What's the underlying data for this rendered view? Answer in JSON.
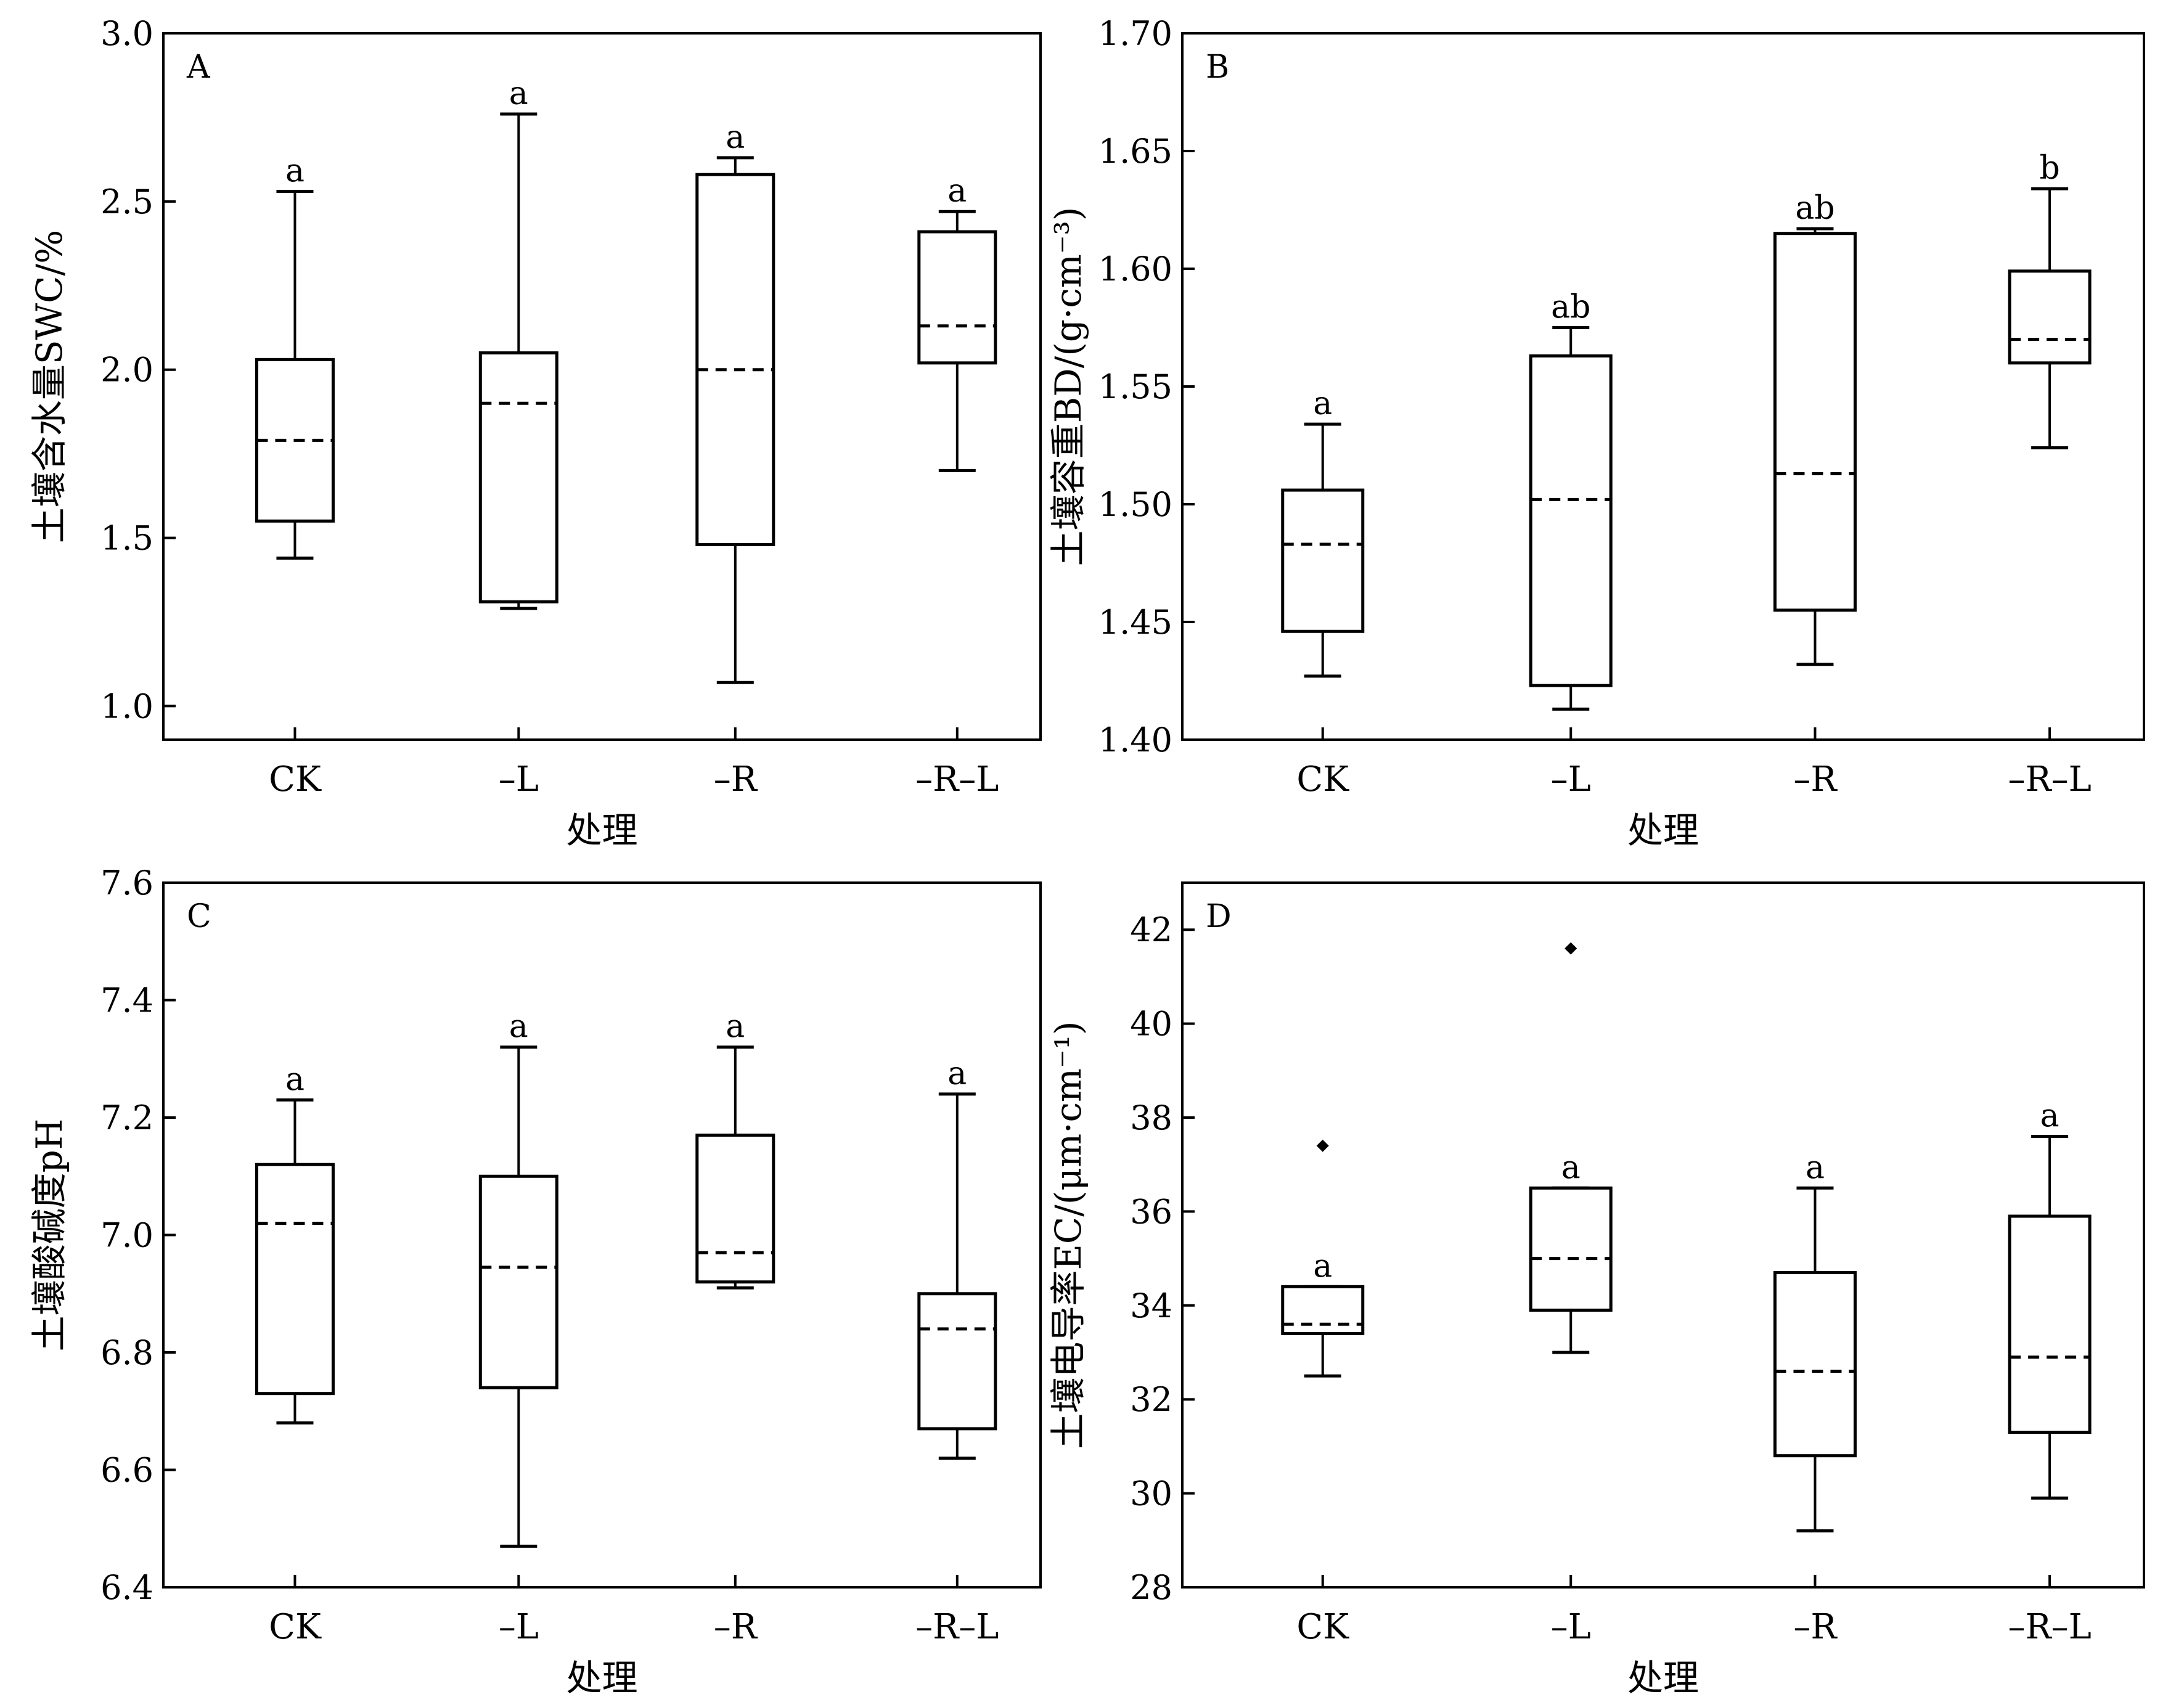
{
  "chart_data": [
    {
      "type": "box",
      "panel": "A",
      "xlabel": "处理",
      "ylabel": "土壤含水量SWC/%",
      "ylim": [
        0.9,
        3.0
      ],
      "yticks": [
        "1.0",
        "1.5",
        "2.0",
        "2.5",
        "3.0"
      ],
      "categories": [
        "CK",
        "–L",
        "–R",
        "–R–L"
      ],
      "boxes": [
        {
          "min": 1.44,
          "q1": 1.55,
          "median": 1.79,
          "q3": 2.03,
          "max": 2.53,
          "sig": "a",
          "outliers": []
        },
        {
          "min": 1.29,
          "q1": 1.31,
          "median": 1.9,
          "q3": 2.05,
          "max": 2.76,
          "sig": "a",
          "outliers": []
        },
        {
          "min": 1.07,
          "q1": 1.48,
          "median": 2.0,
          "q3": 2.58,
          "max": 2.63,
          "sig": "a",
          "outliers": []
        },
        {
          "min": 1.7,
          "q1": 2.02,
          "median": 2.13,
          "q3": 2.41,
          "max": 2.47,
          "sig": "a",
          "outliers": []
        }
      ]
    },
    {
      "type": "box",
      "panel": "B",
      "xlabel": "处理",
      "ylabel": "土壤容重BD/(g·cm⁻³)",
      "ylim": [
        1.4,
        1.7
      ],
      "yticks": [
        "1.40",
        "1.45",
        "1.50",
        "1.55",
        "1.60",
        "1.65",
        "1.70"
      ],
      "categories": [
        "CK",
        "–L",
        "–R",
        "–R–L"
      ],
      "boxes": [
        {
          "min": 1.427,
          "q1": 1.446,
          "median": 1.483,
          "q3": 1.506,
          "max": 1.534,
          "sig": "a",
          "outliers": []
        },
        {
          "min": 1.413,
          "q1": 1.423,
          "median": 1.502,
          "q3": 1.563,
          "max": 1.575,
          "sig": "ab",
          "outliers": []
        },
        {
          "min": 1.432,
          "q1": 1.455,
          "median": 1.513,
          "q3": 1.615,
          "max": 1.617,
          "sig": "ab",
          "outliers": []
        },
        {
          "min": 1.524,
          "q1": 1.56,
          "median": 1.57,
          "q3": 1.599,
          "max": 1.634,
          "sig": "b",
          "outliers": []
        }
      ]
    },
    {
      "type": "box",
      "panel": "C",
      "xlabel": "处理",
      "ylabel": "土壤酸碱度pH",
      "ylim": [
        6.4,
        7.6
      ],
      "yticks": [
        "6.4",
        "6.6",
        "6.8",
        "7.0",
        "7.2",
        "7.4",
        "7.6"
      ],
      "categories": [
        "CK",
        "–L",
        "–R",
        "–R–L"
      ],
      "boxes": [
        {
          "min": 6.68,
          "q1": 6.73,
          "median": 7.02,
          "q3": 7.12,
          "max": 7.23,
          "sig": "a",
          "outliers": []
        },
        {
          "min": 6.47,
          "q1": 6.74,
          "median": 6.945,
          "q3": 7.1,
          "max": 7.32,
          "sig": "a",
          "outliers": []
        },
        {
          "min": 6.91,
          "q1": 6.92,
          "median": 6.97,
          "q3": 7.17,
          "max": 7.32,
          "sig": "a",
          "outliers": []
        },
        {
          "min": 6.62,
          "q1": 6.67,
          "median": 6.84,
          "q3": 6.9,
          "max": 7.24,
          "sig": "a",
          "outliers": []
        }
      ]
    },
    {
      "type": "box",
      "panel": "D",
      "xlabel": "处理",
      "ylabel": "土壤电导率EC/(μm·cm⁻¹)",
      "ylim": [
        28,
        43
      ],
      "yticks": [
        "28",
        "30",
        "32",
        "34",
        "36",
        "38",
        "40",
        "42"
      ],
      "categories": [
        "CK",
        "–L",
        "–R",
        "–R–L"
      ],
      "boxes": [
        {
          "min": 32.5,
          "q1": 33.4,
          "median": 33.6,
          "q3": 34.4,
          "max": 34.4,
          "sig": "a",
          "outliers": [
            37.4
          ]
        },
        {
          "min": 33.0,
          "q1": 33.9,
          "median": 35.0,
          "q3": 36.5,
          "max": 36.5,
          "sig": "a",
          "outliers": [
            41.6
          ]
        },
        {
          "min": 29.2,
          "q1": 30.8,
          "median": 32.6,
          "q3": 34.7,
          "max": 36.5,
          "sig": "a",
          "outliers": []
        },
        {
          "min": 29.9,
          "q1": 31.3,
          "median": 32.9,
          "q3": 35.9,
          "max": 37.6,
          "sig": "a",
          "outliers": []
        }
      ]
    }
  ]
}
